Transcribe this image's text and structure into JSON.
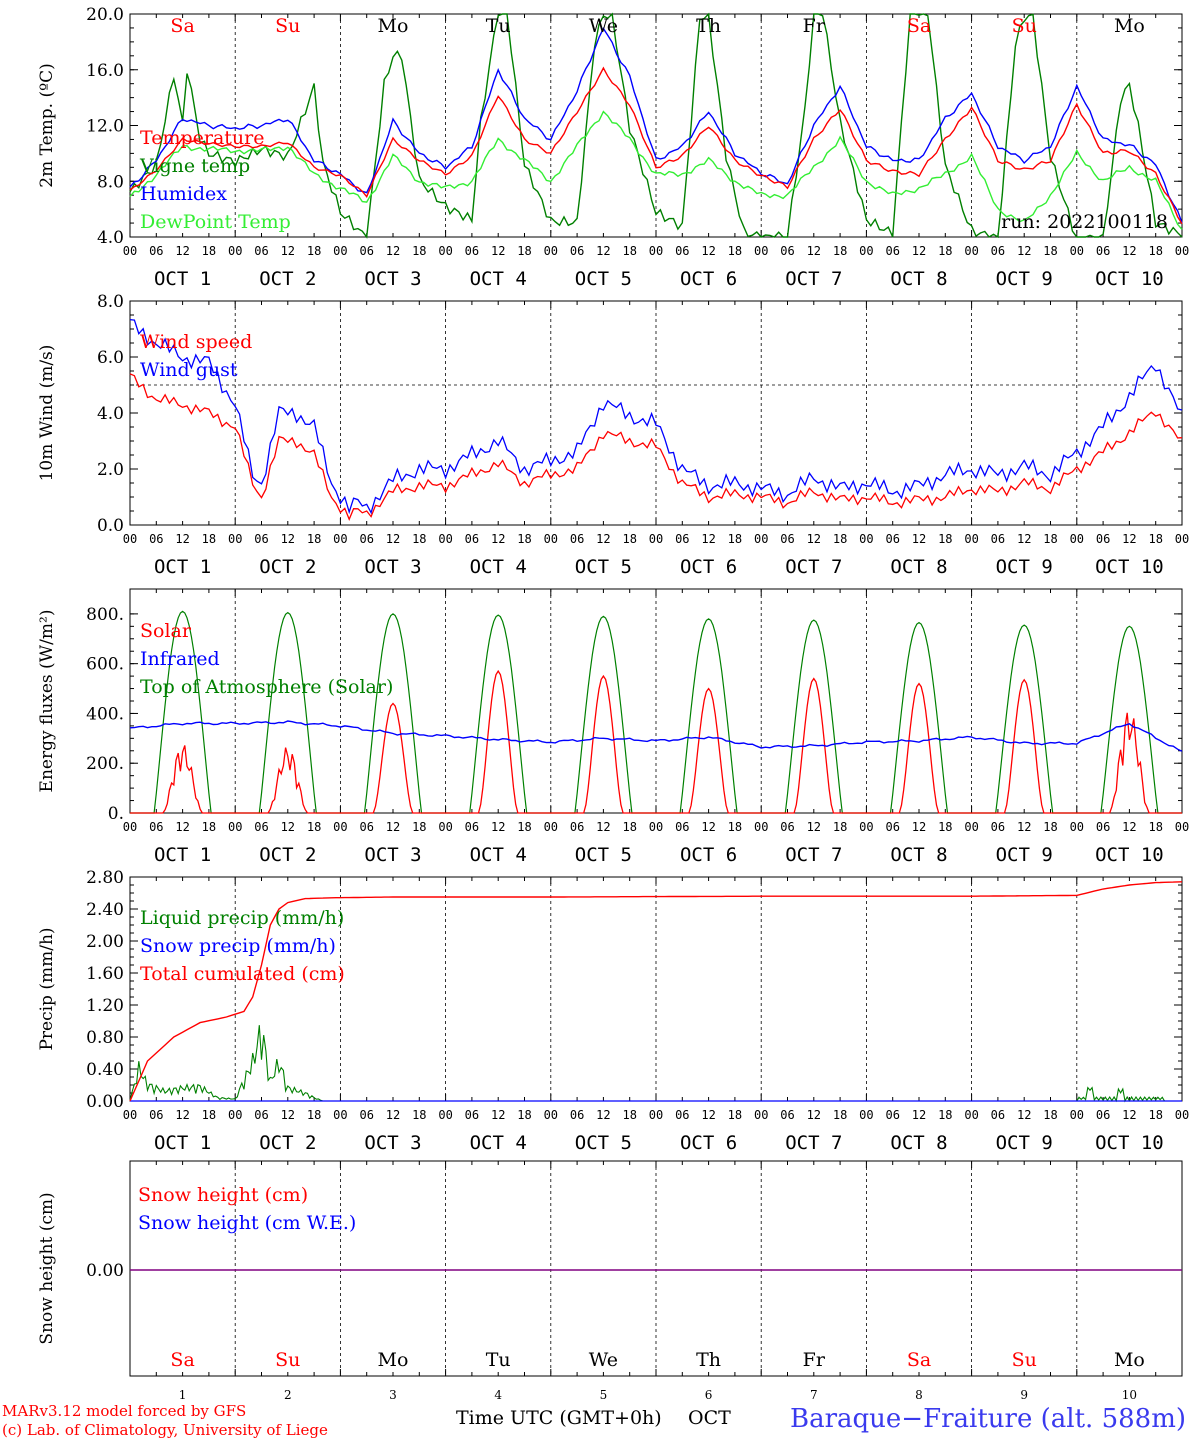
{
  "station": "Baraque−Fraiture (alt. 588m)",
  "run_label": "run: 2022100118",
  "footer": {
    "model": "MARv3.12 model forced by GFS",
    "credit": "(c) Lab. of Climatology, University of Liege",
    "time_label": "Time UTC (GMT+0h)",
    "oct_label": "OCT",
    "day_numbers": [
      "1",
      "2",
      "3",
      "4",
      "5",
      "6",
      "7",
      "8",
      "9",
      "10"
    ]
  },
  "days": {
    "weekday": [
      "Sa",
      "Su",
      "Mo",
      "Tu",
      "We",
      "Th",
      "Fr",
      "Sa",
      "Su",
      "Mo"
    ],
    "weekend": [
      true,
      true,
      false,
      false,
      false,
      false,
      false,
      true,
      true,
      false
    ],
    "date_labels": [
      "OCT  1",
      "OCT  2",
      "OCT  3",
      "OCT  4",
      "OCT  5",
      "OCT  6",
      "OCT  7",
      "OCT  8",
      "OCT  9",
      "OCT 10"
    ],
    "hour_ticks": [
      "00",
      "06",
      "12",
      "18"
    ],
    "end_hour": "00"
  },
  "colors": {
    "red": "#ff0000",
    "green": "#008000",
    "blue": "#0000ff",
    "lightgreen": "#33ee33",
    "purple": "#800080",
    "station": "#3a3aee",
    "footer": "#ff0000"
  },
  "chart_data": [
    {
      "type": "line",
      "ylabel": "2m Temp. (ºC)",
      "ylim": [
        4,
        20
      ],
      "yticks": [
        "4.0",
        "8.0",
        "12.0",
        "16.0",
        "20.0"
      ],
      "x_unit": "hours since 00 UTC OCT 1",
      "series": [
        {
          "name": "Temperature",
          "color": "red",
          "x": [
            0,
            6,
            12,
            18,
            24,
            30,
            36,
            42,
            48,
            54,
            60,
            66,
            72,
            78,
            84,
            90,
            96,
            102,
            108,
            114,
            120,
            126,
            132,
            138,
            144,
            150,
            156,
            162,
            168,
            174,
            180,
            186,
            192,
            198,
            204,
            210,
            216,
            222,
            228,
            234,
            240
          ],
          "y": [
            7.3,
            8.8,
            11.0,
            10.7,
            10.5,
            10.5,
            10.8,
            9.0,
            8.4,
            7.0,
            11.0,
            9.5,
            8.5,
            9.8,
            14.2,
            11.0,
            10.0,
            13.0,
            16.0,
            13.5,
            9.0,
            9.8,
            12.0,
            9.5,
            8.4,
            7.6,
            11.0,
            13.2,
            9.5,
            8.7,
            8.5,
            11.0,
            13.3,
            9.5,
            8.8,
            9.5,
            13.5,
            10.0,
            10.2,
            8.5,
            5.0
          ]
        },
        {
          "name": "Vigne temp",
          "color": "green",
          "x": [
            0,
            6,
            10,
            12,
            13,
            16,
            18,
            24,
            30,
            36,
            42,
            44,
            48,
            54,
            58,
            60,
            62,
            66,
            72,
            78,
            80,
            84,
            86,
            90,
            96,
            102,
            106,
            108,
            110,
            114,
            120,
            126,
            130,
            132,
            136,
            140,
            144,
            150,
            154,
            156,
            158,
            162,
            168,
            174,
            178,
            180,
            182,
            186,
            192,
            198,
            202,
            204,
            206,
            210,
            216,
            222,
            226,
            228,
            230,
            234,
            240
          ],
          "y": [
            7.0,
            9.0,
            15.5,
            12.0,
            16.0,
            11.0,
            10.0,
            9.5,
            10.5,
            10.0,
            15.0,
            9.5,
            6.0,
            4.0,
            15.0,
            17.0,
            17.0,
            8.0,
            6.0,
            5.0,
            12.0,
            20.0,
            20.0,
            9.0,
            5.0,
            5.0,
            18.0,
            20.0,
            20.0,
            12.0,
            6.0,
            5.0,
            20.0,
            20.0,
            10.0,
            4.5,
            4.0,
            4.0,
            13.0,
            20.0,
            20.0,
            12.0,
            5.0,
            4.0,
            20.0,
            20.0,
            20.0,
            9.0,
            4.5,
            4.0,
            18.0,
            20.0,
            20.0,
            10.0,
            4.0,
            4.0,
            14.0,
            15.0,
            12.0,
            5.0,
            4.0
          ]
        },
        {
          "name": "Humidex",
          "color": "blue",
          "x": [
            0,
            6,
            12,
            18,
            24,
            30,
            36,
            42,
            48,
            54,
            60,
            66,
            72,
            78,
            84,
            90,
            96,
            102,
            108,
            114,
            120,
            126,
            132,
            138,
            144,
            150,
            156,
            162,
            168,
            174,
            180,
            186,
            192,
            198,
            204,
            210,
            216,
            222,
            228,
            234,
            240
          ],
          "y": [
            7.5,
            9.5,
            12.5,
            12.0,
            11.8,
            12.0,
            12.5,
            9.5,
            8.5,
            7.0,
            12.3,
            10.0,
            9.0,
            10.5,
            16.0,
            12.5,
            11.0,
            14.5,
            19.0,
            15.5,
            9.5,
            10.5,
            13.0,
            10.0,
            8.6,
            7.8,
            12.0,
            14.8,
            10.5,
            9.5,
            9.5,
            12.5,
            14.3,
            10.5,
            9.5,
            10.5,
            14.8,
            11.0,
            10.6,
            9.2,
            5.0
          ]
        },
        {
          "name": "DewPoint Temp",
          "color": "lightgreen",
          "x": [
            0,
            6,
            12,
            18,
            24,
            30,
            36,
            42,
            48,
            54,
            60,
            66,
            72,
            78,
            84,
            90,
            96,
            102,
            108,
            114,
            120,
            126,
            132,
            138,
            144,
            150,
            156,
            162,
            168,
            174,
            180,
            186,
            192,
            198,
            204,
            210,
            216,
            222,
            228,
            234,
            240
          ],
          "y": [
            6.8,
            8.5,
            10.5,
            10.3,
            10.2,
            10.2,
            10.5,
            8.5,
            7.5,
            6.5,
            9.8,
            8.0,
            7.5,
            8.0,
            11.0,
            9.5,
            8.0,
            10.5,
            13.0,
            11.0,
            8.5,
            8.5,
            9.5,
            8.0,
            7.0,
            7.0,
            9.0,
            11.0,
            8.0,
            7.0,
            7.5,
            8.5,
            9.8,
            6.0,
            5.0,
            7.0,
            10.0,
            8.0,
            9.0,
            8.0,
            4.5
          ]
        }
      ]
    },
    {
      "type": "line",
      "ylabel": "10m Wind (m/s)",
      "ylim": [
        0,
        8
      ],
      "yticks": [
        "0.0",
        "2.0",
        "4.0",
        "6.0",
        "8.0"
      ],
      "ref_line": 5,
      "series": [
        {
          "name": "Wind speed",
          "color": "red",
          "x": [
            0,
            6,
            12,
            18,
            24,
            28,
            30,
            34,
            38,
            42,
            46,
            50,
            52,
            54,
            60,
            66,
            72,
            78,
            84,
            90,
            96,
            102,
            108,
            114,
            120,
            126,
            132,
            138,
            144,
            150,
            156,
            162,
            168,
            174,
            180,
            186,
            192,
            198,
            204,
            210,
            216,
            222,
            228,
            234,
            240
          ],
          "y": [
            5.3,
            4.5,
            4.3,
            4.0,
            3.5,
            1.5,
            1.0,
            3.0,
            3.0,
            2.5,
            1.0,
            0.3,
            0.5,
            0.4,
            1.2,
            1.4,
            1.4,
            1.8,
            2.2,
            1.5,
            1.8,
            2.0,
            3.3,
            3.0,
            2.8,
            1.5,
            1.0,
            1.1,
            1.0,
            0.8,
            1.2,
            0.9,
            1.0,
            0.8,
            0.9,
            1.0,
            1.3,
            1.2,
            1.5,
            1.3,
            2.0,
            2.6,
            3.3,
            4.1,
            2.9
          ]
        },
        {
          "name": "Wind gust",
          "color": "blue",
          "x": [
            0,
            6,
            12,
            18,
            24,
            28,
            30,
            34,
            38,
            42,
            46,
            50,
            52,
            54,
            60,
            66,
            72,
            78,
            84,
            90,
            96,
            102,
            108,
            114,
            120,
            126,
            132,
            138,
            144,
            150,
            156,
            162,
            168,
            174,
            180,
            186,
            192,
            198,
            204,
            210,
            216,
            222,
            228,
            234,
            240
          ],
          "y": [
            7.2,
            6.5,
            6.0,
            5.8,
            4.3,
            1.8,
            1.5,
            4.0,
            4.0,
            3.5,
            1.5,
            0.6,
            0.8,
            0.6,
            1.6,
            2.0,
            2.0,
            2.5,
            3.0,
            2.0,
            2.3,
            2.6,
            4.4,
            3.9,
            3.6,
            2.0,
            1.4,
            1.5,
            1.3,
            1.1,
            1.7,
            1.3,
            1.5,
            1.2,
            1.4,
            1.8,
            2.0,
            1.8,
            2.1,
            1.8,
            2.6,
            3.5,
            4.6,
            5.8,
            3.8
          ]
        }
      ]
    },
    {
      "type": "line",
      "ylabel": "Energy fluxes (W/m²)",
      "ylim": [
        0,
        900
      ],
      "yticks": [
        "0.",
        "200.",
        "400.",
        "600.",
        "800."
      ],
      "series": [
        {
          "name": "Solar",
          "color": "red",
          "peaks": [
            280,
            270,
            440,
            570,
            550,
            500,
            540,
            520,
            535,
            420
          ]
        },
        {
          "name": "Infrared",
          "color": "blue",
          "x": [
            0,
            12,
            24,
            36,
            48,
            60,
            72,
            84,
            96,
            108,
            120,
            132,
            144,
            156,
            168,
            180,
            192,
            204,
            216,
            228,
            240
          ],
          "y": [
            340,
            360,
            360,
            365,
            350,
            320,
            310,
            295,
            285,
            300,
            290,
            305,
            265,
            270,
            285,
            290,
            305,
            280,
            280,
            360,
            245
          ]
        },
        {
          "name": "Top of Atmosphere (Solar)",
          "color": "green",
          "peaks": [
            810,
            805,
            800,
            795,
            790,
            780,
            775,
            765,
            755,
            750
          ]
        }
      ]
    },
    {
      "type": "line",
      "ylabel": "Precip (mm/h)",
      "ylim": [
        0,
        2.8
      ],
      "yticks": [
        "0.00",
        "0.40",
        "0.80",
        "1.20",
        "1.60",
        "2.00",
        "2.40",
        "2.80"
      ],
      "series": [
        {
          "name": "Liquid precip (mm/h)",
          "color": "green",
          "x": [
            0,
            2,
            4,
            8,
            12,
            16,
            20,
            24,
            28,
            30,
            32,
            34,
            36,
            40,
            42,
            44,
            48,
            240
          ],
          "y": [
            0,
            0.5,
            0.25,
            0.15,
            0.2,
            0.22,
            0.05,
            0.03,
            0.6,
            1.1,
            0.3,
            0.6,
            0.2,
            0.12,
            0.05,
            0,
            0,
            0
          ]
        },
        {
          "name": "Snow precip (mm/h)",
          "color": "blue",
          "x": [
            0,
            240
          ],
          "y": [
            0,
            0
          ]
        },
        {
          "name": "Total cumulated (cm)",
          "color": "red",
          "x": [
            0,
            4,
            10,
            16,
            22,
            26,
            28,
            30,
            32,
            34,
            36,
            40,
            46,
            60,
            96,
            144,
            192,
            216,
            222,
            228,
            234,
            240
          ],
          "y": [
            0,
            0.5,
            0.8,
            0.98,
            1.05,
            1.12,
            1.3,
            1.7,
            2.2,
            2.4,
            2.48,
            2.53,
            2.54,
            2.55,
            2.55,
            2.56,
            2.56,
            2.57,
            2.65,
            2.7,
            2.73,
            2.74
          ]
        }
      ]
    },
    {
      "type": "line",
      "ylabel": "Snow height (cm)",
      "yticks": [
        "0.00"
      ],
      "series": [
        {
          "name": "Snow height (cm)",
          "color": "red",
          "x": [
            0,
            240
          ],
          "y": [
            0,
            0
          ]
        },
        {
          "name": "Snow height (cm W.E.)",
          "color": "blue",
          "x": [
            0,
            240
          ],
          "y": [
            0,
            0
          ]
        }
      ]
    }
  ]
}
